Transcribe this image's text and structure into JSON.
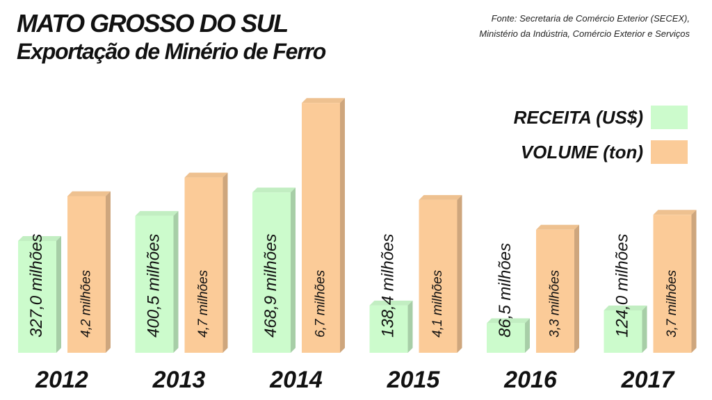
{
  "title": {
    "line1": "MATO GROSSO DO SUL",
    "line2": "Exportação de Minério de Ferro"
  },
  "source": {
    "line1": "Fonte: Secretaria de Comércio Exterior (SECEX),",
    "line2": "Ministério da Indústria, Comércio Exterior e Serviços"
  },
  "chart_data": {
    "type": "bar",
    "categories": [
      "2012",
      "2013",
      "2014",
      "2015",
      "2016",
      "2017"
    ],
    "series": [
      {
        "name": "RECEITA (US$)",
        "values": [
          327.0,
          400.5,
          468.9,
          138.4,
          86.5,
          124.0
        ],
        "labels": [
          "327,0 milhões",
          "400,5 milhões",
          "468,9 milhões",
          "138,4 milhões",
          "86,5 milhões",
          "124,0 milhões"
        ],
        "color": "#ccfbcc"
      },
      {
        "name": "VOLUME (ton)",
        "values": [
          4.2,
          4.7,
          6.7,
          4.1,
          3.3,
          3.7
        ],
        "labels": [
          "4,2 milhões",
          "4,7 milhões",
          "6,7 milhões",
          "4,1 milhões",
          "3,3 milhões",
          "3,7 milhões"
        ],
        "color": "#fbcb98"
      }
    ],
    "legend": "top-right",
    "grid": false
  }
}
